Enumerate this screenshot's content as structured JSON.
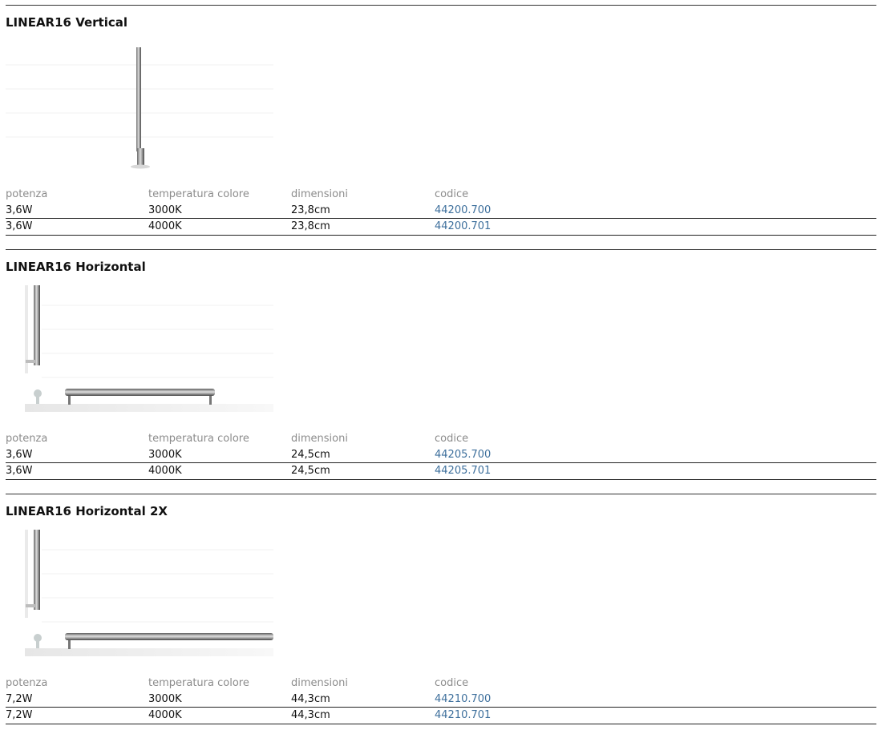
{
  "products": [
    {
      "title": "LINEAR16 Vertical",
      "image_icon": "linear16-vertical-product-image",
      "headers": [
        "potenza",
        "temperatura colore",
        "dimensioni",
        "codice"
      ],
      "rows": [
        {
          "potenza": "3,6W",
          "temperatura": "3000K",
          "dimensioni": "23,8cm",
          "codice": "44200.700"
        },
        {
          "potenza": "3,6W",
          "temperatura": "4000K",
          "dimensioni": "23,8cm",
          "codice": "44200.701"
        }
      ]
    },
    {
      "title": "LINEAR16 Horizontal",
      "image_icon": "linear16-horizontal-product-image",
      "headers": [
        "potenza",
        "temperatura colore",
        "dimensioni",
        "codice"
      ],
      "rows": [
        {
          "potenza": "3,6W",
          "temperatura": "3000K",
          "dimensioni": "24,5cm",
          "codice": "44205.700"
        },
        {
          "potenza": "3,6W",
          "temperatura": "4000K",
          "dimensioni": "24,5cm",
          "codice": "44205.701"
        }
      ]
    },
    {
      "title": "LINEAR16 Horizontal 2X",
      "image_icon": "linear16-horizontal-2x-product-image",
      "headers": [
        "potenza",
        "temperatura colore",
        "dimensioni",
        "codice"
      ],
      "rows": [
        {
          "potenza": "7,2W",
          "temperatura": "3000K",
          "dimensioni": "44,3cm",
          "codice": "44210.700"
        },
        {
          "potenza": "7,2W",
          "temperatura": "4000K",
          "dimensioni": "44,3cm",
          "codice": "44210.701"
        }
      ]
    }
  ],
  "colors": {
    "code_link": "#3d6f9c",
    "header_text": "#8c8c8c",
    "rule": "#333333"
  }
}
